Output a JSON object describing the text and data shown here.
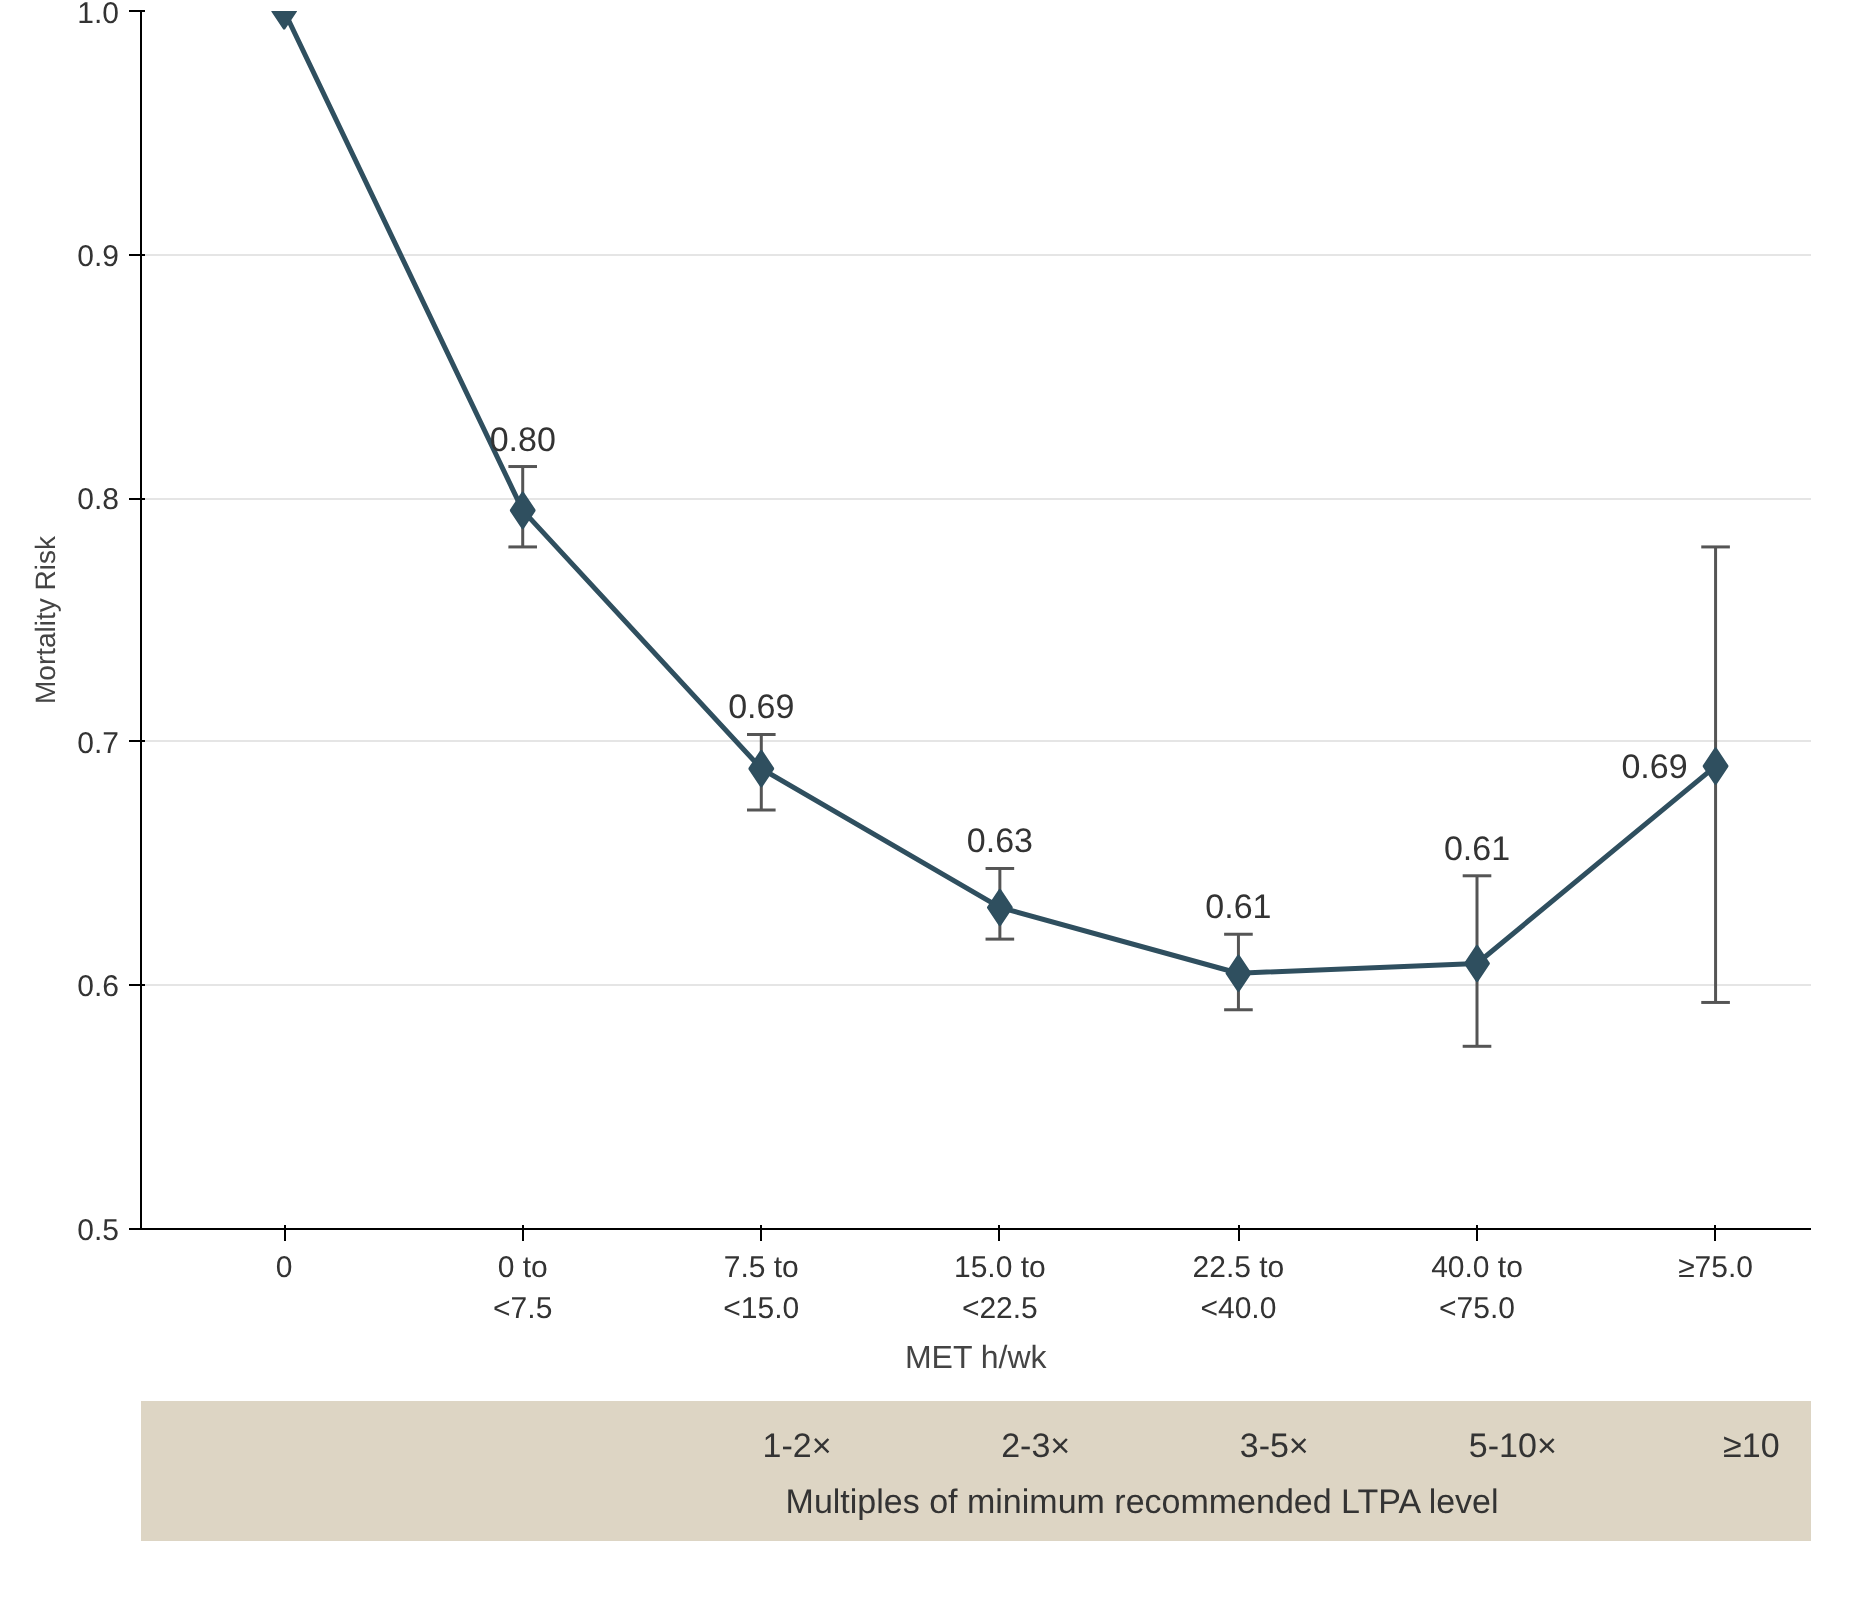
{
  "chart_data": {
    "type": "line",
    "xlabel": "MET h/wk",
    "ylabel": "Mortality Risk",
    "categories": [
      "0",
      "0 to\n<7.5",
      "7.5 to\n<15.0",
      "15.0 to\n<22.5",
      "22.5 to\n<40.0",
      "40.0 to\n<75.0",
      "≥75.0"
    ],
    "series": [
      {
        "color": "#2f4f5f",
        "values": [
          1.0,
          0.795,
          0.689,
          0.632,
          0.605,
          0.609,
          0.69
        ],
        "errors": [
          null,
          [
            0.78,
            0.813
          ],
          [
            0.672,
            0.703
          ],
          [
            0.619,
            0.648
          ],
          [
            0.59,
            0.621
          ],
          [
            0.575,
            0.645
          ],
          [
            0.593,
            0.78
          ]
        ],
        "value_labels": [
          null,
          "0.80",
          "0.69",
          "0.63",
          "0.61",
          "0.61",
          "0.69"
        ]
      }
    ],
    "ylim": [
      0.5,
      1.0
    ],
    "yticks": [
      {
        "value": 0.5,
        "label": "0.5"
      },
      {
        "value": 0.6,
        "label": "0.6"
      },
      {
        "value": 0.7,
        "label": "0.7"
      },
      {
        "value": 0.8,
        "label": "0.8"
      },
      {
        "value": 0.9,
        "label": "0.9"
      },
      {
        "value": 1.0,
        "label": "1.0"
      }
    ],
    "grid": "y",
    "marker": "diamond",
    "line_style": "solid",
    "annotations": [
      "1-2×",
      "2-3×",
      "3-5×",
      "5-10×",
      "≥10",
      "Multiples of minimum recommended LTPA level"
    ]
  }
}
